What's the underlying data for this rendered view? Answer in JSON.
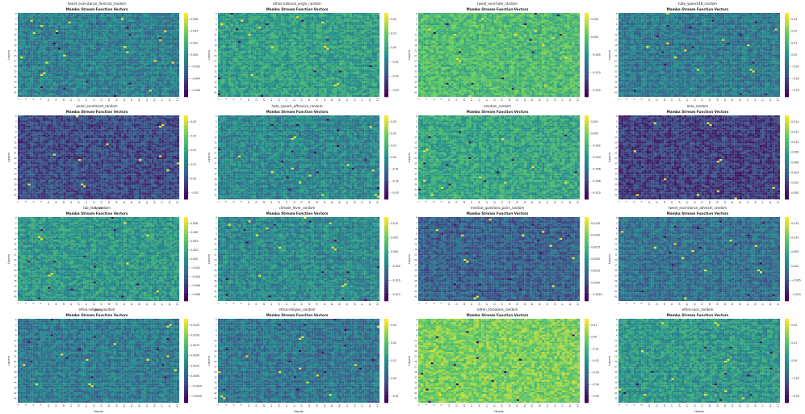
{
  "figure": {
    "panels": [
      {
        "title": "Mamba Stream Function Vectors",
        "subtitle": "tweet_eval-stance_feminist_random",
        "cbar_ticks": [
          "0.008",
          "0.004",
          "0.002",
          "0.000",
          "−0.002",
          "−0.004",
          "−0.006"
        ],
        "xlabel": "",
        "ylabel": "Layers"
      },
      {
        "title": "Mamba Stream Function Vectors",
        "subtitle": "ethos-national_origin_random",
        "cbar_ticks": [
          "0.02",
          "0.01",
          "0.00",
          "−0.01",
          "−0.02",
          "−0.03"
        ],
        "xlabel": "",
        "ylabel": "Layers"
      },
      {
        "title": "Mamba Stream Function Vectors",
        "subtitle": "tweet_eval-hate_random",
        "cbar_ticks": [
          "0.005",
          "0.000",
          "−0.005",
          "−0.010",
          "−0.015"
        ],
        "xlabel": "",
        "ylabel": "Layers"
      },
      {
        "title": "Mamba Stream Function Vectors",
        "subtitle": "hate_speech18_random",
        "cbar_ticks": [
          "0.03",
          "0.02",
          "0.01",
          "0.00",
          "−0.01",
          "−0.02",
          "−0.03"
        ],
        "xlabel": "",
        "ylabel": "Layers"
      },
      {
        "title": "Mamba Stream Function Vectors",
        "subtitle": "poem_sentiment_random",
        "cbar_ticks": [
          "0.04",
          "0.03",
          "0.02",
          "0.01",
          "0.00",
          "−0.01"
        ],
        "xlabel": "Heads",
        "ylabel": "Layers"
      },
      {
        "title": "Mamba Stream Function Vectors",
        "subtitle": "hate_speech_offensive_random",
        "cbar_ticks": [
          "0.03",
          "0.02",
          "0.01",
          "0.00",
          "−0.01",
          "−0.02",
          "−0.03"
        ],
        "xlabel": "",
        "ylabel": "Layers"
      },
      {
        "title": "Mamba Stream Function Vectors",
        "subtitle": "emotion_random",
        "cbar_ticks": [
          "0.001",
          "0.000",
          "−0.002",
          "−0.004",
          "−0.006",
          "−0.008",
          "−0.010"
        ],
        "xlabel": "",
        "ylabel": "Layers"
      },
      {
        "title": "Mamba Stream Function Vectors",
        "subtitle": "emo_random",
        "cbar_ticks": [
          "0.014",
          "0.012",
          "0.010",
          "0.008",
          "0.006",
          "0.004",
          "0.002",
          "0.000"
        ],
        "xlabel": "",
        "ylabel": "Layers"
      },
      {
        "title": "Mamba Stream Function Vectors",
        "subtitle": "tab_fact_random",
        "cbar_ticks": [
          "0.008",
          "0.006",
          "0.004",
          "0.002",
          "0.000",
          "−0.002",
          "−0.004",
          "−0.006",
          "−0.008"
        ],
        "xlabel": "Heads",
        "ylabel": "Layers"
      },
      {
        "title": "Mamba Stream Function Vectors",
        "subtitle": "climate_fever_random",
        "cbar_ticks": [
          "0.010",
          "0.005",
          "0.000",
          "−0.005",
          "−0.010",
          "−0.015"
        ],
        "xlabel": "",
        "ylabel": "Layers"
      },
      {
        "title": "Mamba Stream Function Vectors",
        "subtitle": "medical_questions_pairs_random",
        "cbar_ticks": [
          "0.0125",
          "0.0100",
          "0.0075",
          "0.0050",
          "0.0025",
          "0.0000",
          "−0.0025"
        ],
        "xlabel": "",
        "ylabel": "Layers"
      },
      {
        "title": "Mamba Stream Function Vectors",
        "subtitle": "tweet_eval-stance_atheism_random",
        "cbar_ticks": [
          "0.015",
          "0.010",
          "0.005",
          "0.000",
          "−0.005",
          "−0.010"
        ],
        "xlabel": "",
        "ylabel": "Layers"
      },
      {
        "title": "Mamba Stream Function Vectors",
        "subtitle": "ethos-religion_random",
        "cbar_ticks": [
          "0.0125",
          "0.0100",
          "0.0075",
          "0.0050",
          "0.0025",
          "0.0000",
          "−0.0025",
          "−0.0050"
        ],
        "xlabel": "Heads",
        "ylabel": "Layers"
      },
      {
        "title": "Mamba Stream Function Vectors",
        "subtitle": "ethos-religion_random",
        "cbar_ticks": [
          "0.03",
          "0.02",
          "0.01",
          "0.00",
          "−0.01"
        ],
        "xlabel": "Heads",
        "ylabel": "Layers"
      },
      {
        "title": "Mamba Stream Function Vectors",
        "subtitle": "rotten_tomatoes_random",
        "cbar_ticks": [
          "0.01",
          "0.00",
          "−0.01",
          "−0.02",
          "−0.03",
          "−0.04",
          "−0.05"
        ],
        "xlabel": "Heads",
        "ylabel": "Layers"
      },
      {
        "title": "Mamba Stream Function Vectors",
        "subtitle": "ethos-race_random",
        "cbar_ticks": [
          "0.02",
          "0.01",
          "0.00",
          "−0.02",
          "−0.04"
        ],
        "xlabel": "Heads",
        "ylabel": "Layers"
      }
    ]
  },
  "chart_data": {
    "type": "heatmap",
    "x_ticks": [
      "0",
      "3",
      "6",
      "9",
      "12",
      "15",
      "18",
      "21",
      "24",
      "27",
      "30",
      "33",
      "36",
      "39",
      "42",
      "45",
      "48",
      "51",
      "54",
      "57",
      "60",
      "63"
    ],
    "y_ticks": [
      "0",
      "3",
      "6",
      "9",
      "12",
      "15",
      "18",
      "21",
      "24",
      "27",
      "30",
      "33",
      "36",
      "39",
      "42",
      "45"
    ],
    "colormap": [
      "#440154",
      "#3b528b",
      "#21918c",
      "#5ec962",
      "#fde725"
    ],
    "grid": false
  }
}
